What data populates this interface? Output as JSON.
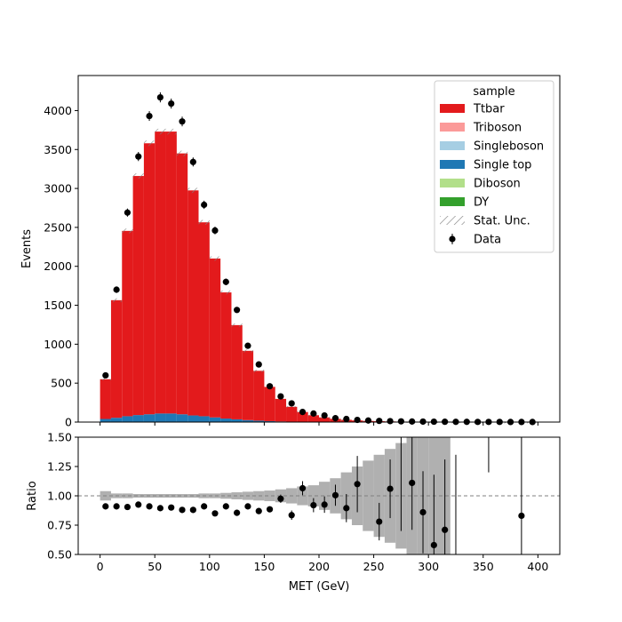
{
  "chart_data": [
    {
      "type": "bar",
      "subtype": "stacked-histogram",
      "title": "",
      "xlabel": "",
      "ylabel": "Events",
      "xlim": [
        -20,
        420
      ],
      "ylim": [
        0,
        4450
      ],
      "yticks": [
        0,
        500,
        1000,
        1500,
        2000,
        2500,
        3000,
        3500,
        4000
      ],
      "bin_edges": [
        0,
        10,
        20,
        30,
        40,
        50,
        60,
        70,
        80,
        90,
        100,
        110,
        120,
        130,
        140,
        150,
        160,
        170,
        180,
        190,
        200,
        210,
        220,
        230,
        240,
        250,
        260,
        270,
        280,
        290,
        300,
        310,
        320,
        330,
        340,
        350,
        360,
        370,
        380,
        390,
        400
      ],
      "series": [
        {
          "name": "Ttbar",
          "color": "#e31a1c",
          "values": [
            510,
            1510,
            2380,
            3070,
            3480,
            3620,
            3620,
            3350,
            2890,
            2490,
            2040,
            1620,
            1210,
            890,
            640,
            440,
            290,
            190,
            125,
            85,
            58,
            40,
            28,
            20,
            14,
            10,
            8,
            6,
            5,
            4,
            3,
            3,
            2,
            2,
            2,
            1,
            1,
            1,
            1,
            1
          ]
        },
        {
          "name": "Triboson",
          "color": "#fb9a99",
          "values": [
            0,
            0,
            0,
            0,
            0,
            0,
            0,
            0,
            0,
            0,
            0,
            0,
            0,
            0,
            0,
            0,
            0,
            0,
            0,
            0,
            0,
            0,
            0,
            0,
            0,
            0,
            0,
            0,
            0,
            0,
            0,
            0,
            0,
            0,
            0,
            0,
            0,
            0,
            0,
            0
          ]
        },
        {
          "name": "Singleboson",
          "color": "#a6cee3",
          "values": [
            0,
            0,
            0,
            0,
            0,
            0,
            0,
            0,
            0,
            0,
            0,
            0,
            0,
            0,
            0,
            0,
            0,
            0,
            0,
            0,
            0,
            0,
            0,
            0,
            0,
            0,
            0,
            0,
            0,
            0,
            0,
            0,
            0,
            0,
            0,
            0,
            0,
            0,
            0,
            0
          ]
        },
        {
          "name": "Single top",
          "color": "#1f78b4",
          "values": [
            40,
            55,
            75,
            90,
            100,
            110,
            110,
            100,
            85,
            75,
            60,
            45,
            35,
            25,
            18,
            12,
            8,
            6,
            4,
            3,
            2,
            2,
            1,
            1,
            1,
            1,
            0,
            0,
            0,
            0,
            0,
            0,
            0,
            0,
            0,
            0,
            0,
            0,
            0,
            0
          ]
        },
        {
          "name": "Diboson",
          "color": "#b2df8a",
          "values": [
            0,
            0,
            0,
            0,
            0,
            0,
            0,
            0,
            0,
            0,
            0,
            0,
            0,
            0,
            0,
            0,
            0,
            0,
            0,
            0,
            0,
            0,
            0,
            0,
            0,
            0,
            0,
            0,
            0,
            0,
            0,
            0,
            0,
            0,
            0,
            0,
            0,
            0,
            0,
            0
          ]
        },
        {
          "name": "DY",
          "color": "#33a02c",
          "values": [
            0,
            0,
            0,
            0,
            0,
            0,
            0,
            0,
            0,
            0,
            0,
            0,
            0,
            0,
            0,
            0,
            0,
            0,
            0,
            0,
            0,
            0,
            0,
            0,
            0,
            0,
            0,
            0,
            0,
            0,
            0,
            0,
            0,
            0,
            0,
            0,
            0,
            0,
            0,
            0
          ]
        }
      ],
      "stat_unc_label": "Stat. Unc.",
      "data": {
        "name": "Data",
        "x": [
          5,
          15,
          25,
          35,
          45,
          55,
          65,
          75,
          85,
          95,
          105,
          115,
          125,
          135,
          145,
          155,
          165,
          175,
          185,
          195,
          205,
          215,
          225,
          235,
          245,
          255,
          265,
          275,
          285,
          295,
          305,
          315,
          325,
          335,
          345,
          355,
          365,
          375,
          385,
          395
        ],
        "y": [
          600,
          1700,
          2690,
          3410,
          3930,
          4170,
          4090,
          3860,
          3340,
          2790,
          2460,
          1800,
          1440,
          980,
          740,
          460,
          330,
          240,
          130,
          110,
          85,
          50,
          40,
          28,
          20,
          15,
          12,
          9,
          7,
          6,
          5,
          4,
          3,
          3,
          2,
          2,
          2,
          1,
          1,
          1
        ]
      },
      "legend": {
        "title": "sample",
        "position": "top-right"
      }
    },
    {
      "type": "scatter",
      "subtype": "ratio",
      "xlabel": "MET (GeV)",
      "ylabel": "Ratio",
      "xlim": [
        -20,
        420
      ],
      "ylim": [
        0.5,
        1.5
      ],
      "xticks": [
        0,
        50,
        100,
        150,
        200,
        250,
        300,
        350,
        400
      ],
      "yticks": [
        0.5,
        0.75,
        1.0,
        1.25,
        1.5
      ],
      "ytick_labels": [
        "0.50",
        "0.75",
        "1.00",
        "1.25",
        "1.50"
      ],
      "reference_line": 1.0,
      "unc_band": [
        0.04,
        0.02,
        0.02,
        0.015,
        0.015,
        0.015,
        0.015,
        0.015,
        0.015,
        0.02,
        0.02,
        0.025,
        0.03,
        0.035,
        0.04,
        0.045,
        0.055,
        0.065,
        0.08,
        0.09,
        0.12,
        0.15,
        0.2,
        0.25,
        0.3,
        0.35,
        0.4,
        0.45,
        0.5,
        0.55,
        0.6,
        0.65,
        0,
        0,
        0,
        0,
        0,
        0,
        0,
        0
      ],
      "points": {
        "x": [
          5,
          15,
          25,
          35,
          45,
          55,
          65,
          75,
          85,
          95,
          105,
          115,
          125,
          135,
          145,
          155,
          165,
          175,
          185,
          195,
          205,
          215,
          225,
          235,
          255,
          265,
          285,
          295,
          305,
          315,
          385
        ],
        "y": [
          0.91,
          0.91,
          0.905,
          0.925,
          0.91,
          0.895,
          0.9,
          0.88,
          0.88,
          0.91,
          0.85,
          0.91,
          0.855,
          0.91,
          0.87,
          0.885,
          0.975,
          0.835,
          1.065,
          0.92,
          0.925,
          1.005,
          0.895,
          1.1,
          0.78,
          1.06,
          1.11,
          0.86,
          0.58,
          0.71,
          0.83
        ],
        "yerr": [
          0.01,
          0.01,
          0.01,
          0.01,
          0.01,
          0.01,
          0.01,
          0.01,
          0.01,
          0.01,
          0.01,
          0.015,
          0.015,
          0.02,
          0.02,
          0.025,
          0.035,
          0.04,
          0.06,
          0.06,
          0.07,
          0.09,
          0.12,
          0.24,
          0.16,
          0.25,
          0.4,
          0.35,
          0.6,
          0.6,
          0.7
        ]
      },
      "error_only": [
        {
          "x": 275,
          "low": 0.7,
          "high": 1.5
        },
        {
          "x": 325,
          "low": 0.5,
          "high": 1.35
        },
        {
          "x": 355,
          "low": 1.2,
          "high": 1.5
        }
      ]
    }
  ]
}
